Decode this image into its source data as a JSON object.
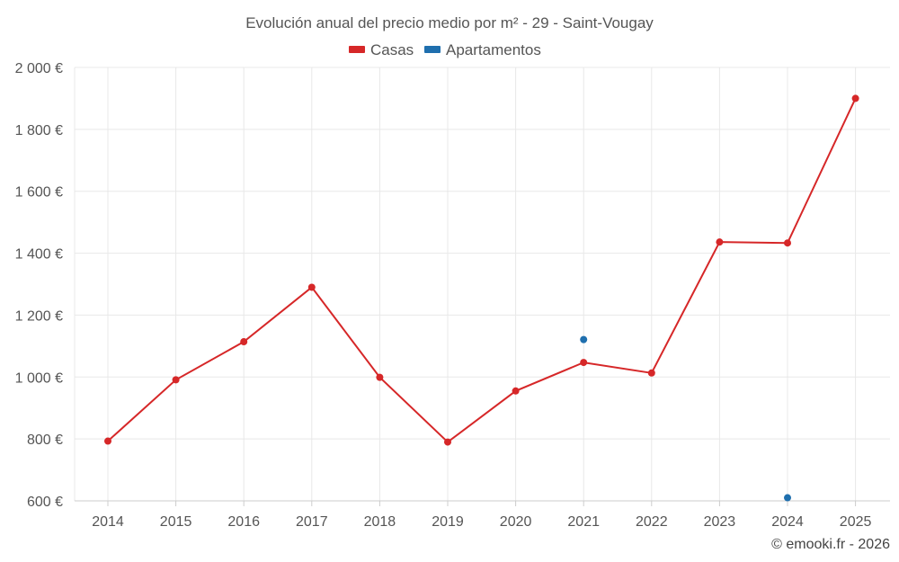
{
  "chart_data": {
    "type": "line",
    "title": "Evolución anual del precio medio por m² - 29 - Saint-Vougay",
    "categories": [
      "2014",
      "2015",
      "2016",
      "2017",
      "2018",
      "2019",
      "2020",
      "2021",
      "2022",
      "2023",
      "2024",
      "2025"
    ],
    "series": [
      {
        "name": "Casas",
        "color": "#d62728",
        "values": [
          793,
          991,
          1114,
          1290,
          999,
          790,
          955,
          1047,
          1013,
          1436,
          1433,
          1900
        ]
      },
      {
        "name": "Apartamentos",
        "color": "#1f6fae",
        "values": [
          null,
          null,
          null,
          null,
          null,
          null,
          null,
          1121,
          null,
          null,
          610,
          null
        ]
      }
    ],
    "ylim": [
      600,
      2000
    ],
    "yticks": [
      600,
      800,
      1000,
      1200,
      1400,
      1600,
      1800,
      2000
    ],
    "ytick_labels": [
      "600 €",
      "800 €",
      "1 000 €",
      "1 200 €",
      "1 400 €",
      "1 600 €",
      "1 800 €",
      "2 000 €"
    ],
    "xlabel": "",
    "ylabel": "",
    "grid": true,
    "legend_position": "top-center"
  },
  "credit": "© emooki.fr - 2026"
}
